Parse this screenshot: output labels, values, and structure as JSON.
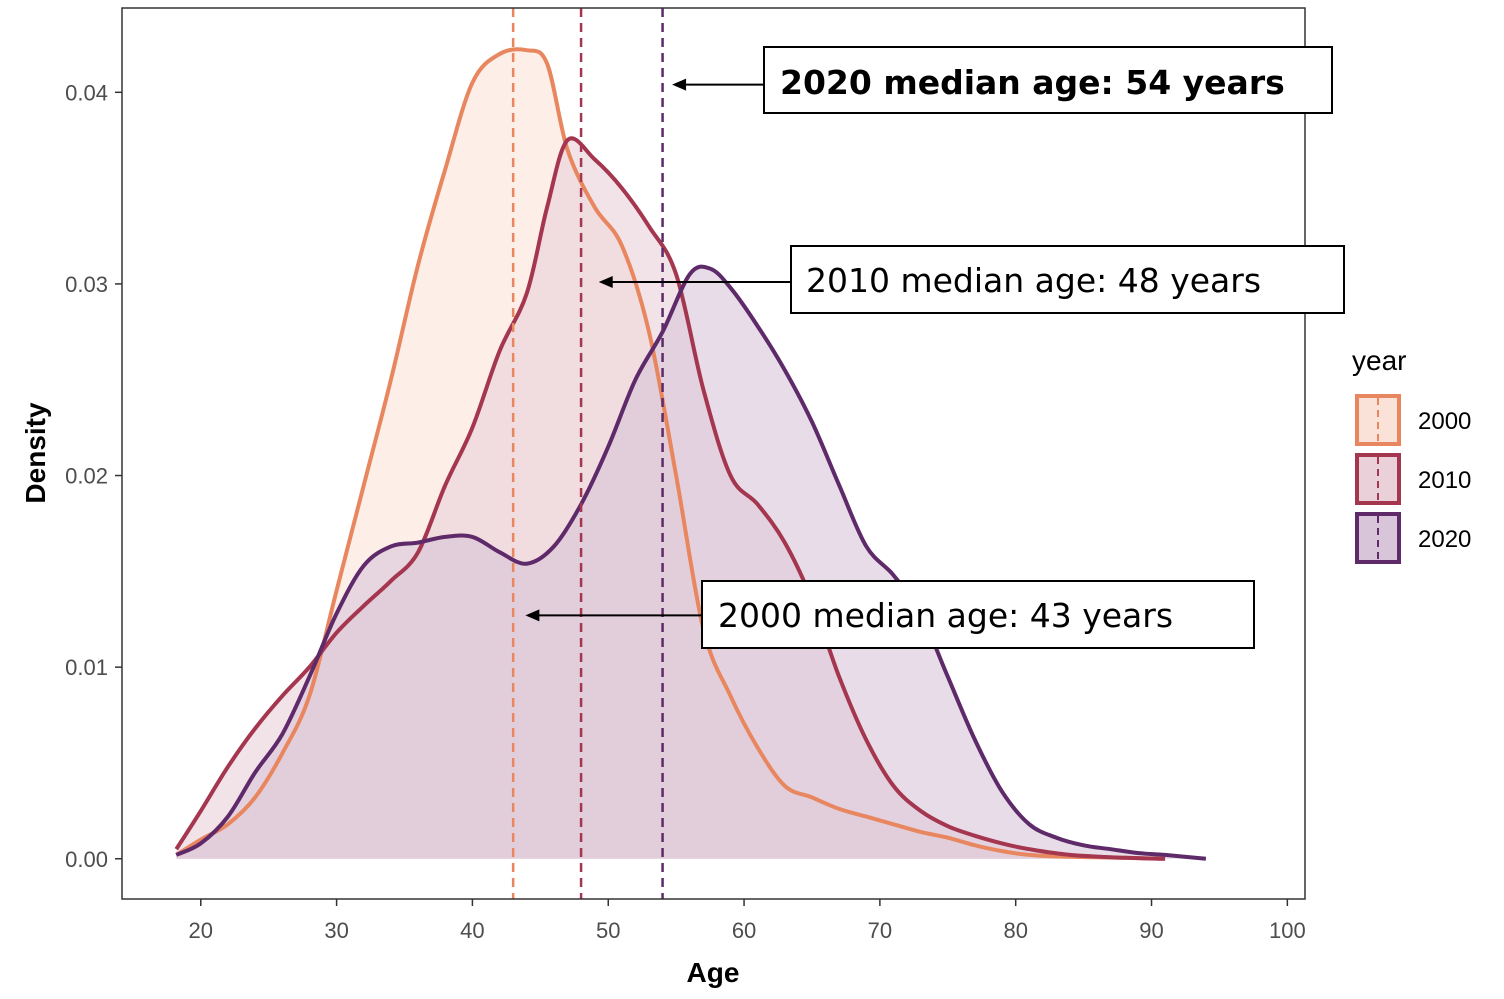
{
  "chart_data": {
    "type": "area",
    "xlabel": "Age",
    "ylabel": "Density",
    "xlim": [
      14.2,
      101.3
    ],
    "ylim": [
      -0.0021,
      0.0444
    ],
    "x_ticks": [
      "20",
      "30",
      "40",
      "50",
      "60",
      "70",
      "80",
      "90",
      "100"
    ],
    "y_ticks": [
      "0.00",
      "0.01",
      "0.02",
      "0.03",
      "0.04"
    ],
    "grid": false,
    "legend": {
      "title": "year",
      "placement": "right",
      "entries": [
        "2000",
        "2010",
        "2020"
      ]
    },
    "series": [
      {
        "name": "2000",
        "color": "#e8875f",
        "fill": "#fbe2d8",
        "median": 43,
        "points": [
          [
            18.2,
            0.0002
          ],
          [
            20,
            0.001
          ],
          [
            22,
            0.0018
          ],
          [
            24,
            0.0032
          ],
          [
            26,
            0.0055
          ],
          [
            28,
            0.0085
          ],
          [
            30,
            0.014
          ],
          [
            32,
            0.0195
          ],
          [
            34,
            0.025
          ],
          [
            36,
            0.031
          ],
          [
            38,
            0.036
          ],
          [
            40,
            0.0405
          ],
          [
            42,
            0.042
          ],
          [
            44,
            0.0422
          ],
          [
            45.5,
            0.0415
          ],
          [
            47,
            0.037
          ],
          [
            49,
            0.034
          ],
          [
            51,
            0.032
          ],
          [
            53,
            0.0275
          ],
          [
            55,
            0.02
          ],
          [
            57,
            0.012
          ],
          [
            59,
            0.0085
          ],
          [
            61,
            0.0058
          ],
          [
            63,
            0.0038
          ],
          [
            65,
            0.0032
          ],
          [
            67,
            0.0026
          ],
          [
            69,
            0.0022
          ],
          [
            71,
            0.0018
          ],
          [
            73,
            0.0014
          ],
          [
            75,
            0.0011
          ],
          [
            77,
            0.0007
          ],
          [
            79,
            0.0004
          ],
          [
            81,
            0.0002
          ],
          [
            84,
            0.0001
          ],
          [
            88,
            5e-05
          ],
          [
            91,
            0.0
          ]
        ]
      },
      {
        "name": "2010",
        "color": "#a5364f",
        "fill": "#ead0d8",
        "median": 48,
        "points": [
          [
            18.2,
            0.0005
          ],
          [
            20,
            0.0025
          ],
          [
            22,
            0.0048
          ],
          [
            24,
            0.0068
          ],
          [
            26,
            0.0085
          ],
          [
            28,
            0.01
          ],
          [
            30,
            0.0118
          ],
          [
            32,
            0.0132
          ],
          [
            34,
            0.0145
          ],
          [
            36,
            0.016
          ],
          [
            38,
            0.0195
          ],
          [
            40,
            0.0225
          ],
          [
            42,
            0.0265
          ],
          [
            44,
            0.0295
          ],
          [
            45.5,
            0.034
          ],
          [
            47,
            0.0375
          ],
          [
            49,
            0.0365
          ],
          [
            51,
            0.035
          ],
          [
            53,
            0.033
          ],
          [
            55,
            0.0305
          ],
          [
            57,
            0.0245
          ],
          [
            59,
            0.02
          ],
          [
            61,
            0.0185
          ],
          [
            63,
            0.0165
          ],
          [
            65,
            0.0135
          ],
          [
            67,
            0.0095
          ],
          [
            69,
            0.0062
          ],
          [
            71,
            0.0038
          ],
          [
            73,
            0.0025
          ],
          [
            75,
            0.0017
          ],
          [
            77,
            0.0012
          ],
          [
            79,
            0.0008
          ],
          [
            81,
            0.0005
          ],
          [
            84,
            0.0002
          ],
          [
            88,
            5e-05
          ],
          [
            91,
            0.0
          ]
        ]
      },
      {
        "name": "2020",
        "color": "#5e2a69",
        "fill": "#d8c5d9",
        "median": 54,
        "points": [
          [
            18.2,
            0.0002
          ],
          [
            20,
            0.0008
          ],
          [
            22,
            0.0022
          ],
          [
            24,
            0.0045
          ],
          [
            26,
            0.0065
          ],
          [
            28,
            0.0095
          ],
          [
            30,
            0.0128
          ],
          [
            32,
            0.0153
          ],
          [
            34,
            0.0163
          ],
          [
            36,
            0.0165
          ],
          [
            38,
            0.0168
          ],
          [
            40,
            0.0168
          ],
          [
            42,
            0.016
          ],
          [
            44,
            0.0154
          ],
          [
            46,
            0.0163
          ],
          [
            48,
            0.0185
          ],
          [
            50,
            0.0215
          ],
          [
            52,
            0.025
          ],
          [
            54,
            0.0275
          ],
          [
            56,
            0.0305
          ],
          [
            57.5,
            0.0308
          ],
          [
            59,
            0.0298
          ],
          [
            61,
            0.0278
          ],
          [
            63,
            0.0255
          ],
          [
            65,
            0.0228
          ],
          [
            67,
            0.0195
          ],
          [
            69,
            0.0163
          ],
          [
            71,
            0.0148
          ],
          [
            73,
            0.0128
          ],
          [
            75,
            0.0095
          ],
          [
            77,
            0.0062
          ],
          [
            79,
            0.0035
          ],
          [
            81,
            0.0018
          ],
          [
            83,
            0.0011
          ],
          [
            85,
            0.0007
          ],
          [
            87,
            0.0005
          ],
          [
            89,
            0.0003
          ],
          [
            91,
            0.0002
          ],
          [
            94,
            0.0
          ]
        ]
      }
    ],
    "annotations": [
      {
        "text": "2020 median age: 54 years",
        "bold": true,
        "arrow_target": [
          54.7,
          0.0404
        ]
      },
      {
        "text": "2010 median age: 48 years",
        "bold": false,
        "arrow_target": [
          49.3,
          0.0301
        ]
      },
      {
        "text": "2000 median age: 43 years",
        "bold": false,
        "arrow_target": [
          43.9,
          0.0127
        ]
      }
    ]
  }
}
